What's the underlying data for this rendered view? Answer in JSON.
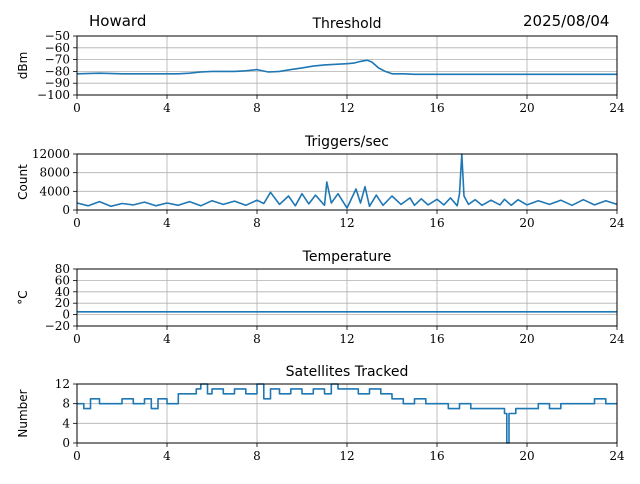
{
  "header": {
    "station": "Howard",
    "date": "2025/08/04"
  },
  "line_color": "#1f77b4",
  "grid_color": "#b0b0b0",
  "chart_data": [
    {
      "type": "line",
      "title": "Threshold",
      "ylabel": "dBm",
      "xlabel": "",
      "xlim": [
        0,
        24
      ],
      "ylim": [
        -100,
        -50
      ],
      "xticks": [
        0,
        4,
        8,
        12,
        16,
        20,
        24
      ],
      "yticks": [
        -100,
        -90,
        -80,
        -70,
        -60,
        -50
      ],
      "ytick_labels": [
        "−100",
        "−90",
        "−80",
        "−70",
        "−60",
        "−50"
      ],
      "grid": true,
      "series": [
        {
          "x": [
            0,
            1,
            2,
            3,
            4,
            4.5,
            5,
            5.5,
            6,
            7,
            7.5,
            8,
            8.5,
            9,
            9.5,
            10,
            10.5,
            11,
            11.5,
            12,
            12.3,
            12.6,
            12.9,
            13.1,
            13.4,
            13.7,
            14,
            14.5,
            15,
            16,
            17,
            18,
            19,
            20,
            21,
            22,
            23,
            24
          ],
          "y": [
            -82,
            -81.5,
            -82,
            -82,
            -82,
            -82,
            -81.5,
            -80.5,
            -80,
            -80,
            -79.5,
            -78.5,
            -80.5,
            -80,
            -78.5,
            -77,
            -75.5,
            -74.5,
            -74,
            -73.5,
            -73,
            -71.5,
            -70.5,
            -72,
            -77,
            -80,
            -82,
            -82,
            -82.5,
            -82.5,
            -82.5,
            -82.5,
            -82.5,
            -82.5,
            -82.5,
            -82.5,
            -82.5,
            -82.5
          ]
        }
      ]
    },
    {
      "type": "line",
      "title": "Triggers/sec",
      "ylabel": "Count",
      "xlabel": "",
      "xlim": [
        0,
        24
      ],
      "ylim": [
        0,
        12000
      ],
      "xticks": [
        0,
        4,
        8,
        12,
        16,
        20,
        24
      ],
      "yticks": [
        0,
        4000,
        8000,
        12000
      ],
      "ytick_labels": [
        "0",
        "4000",
        "8000",
        "12000"
      ],
      "grid": true,
      "series": [
        {
          "x": [
            0,
            0.5,
            1,
            1.5,
            2,
            2.5,
            3,
            3.5,
            4,
            4.5,
            5,
            5.5,
            6,
            6.5,
            7,
            7.5,
            8,
            8.3,
            8.6,
            9,
            9.4,
            9.7,
            10,
            10.3,
            10.6,
            11,
            11.1,
            11.3,
            11.6,
            12,
            12.4,
            12.6,
            12.8,
            13,
            13.3,
            13.6,
            14,
            14.4,
            14.8,
            15,
            15.3,
            15.6,
            16,
            16.3,
            16.6,
            16.9,
            17,
            17.1,
            17.2,
            17.4,
            17.7,
            18,
            18.4,
            18.8,
            19,
            19.3,
            19.6,
            20,
            20.5,
            21,
            21.5,
            22,
            22.5,
            23,
            23.5,
            24
          ],
          "y": [
            1500,
            900,
            1800,
            800,
            1400,
            1100,
            1700,
            900,
            1500,
            1000,
            1800,
            900,
            2000,
            1200,
            1900,
            1000,
            2100,
            1400,
            3800,
            1200,
            3000,
            900,
            3500,
            1300,
            3200,
            1000,
            6000,
            1500,
            3500,
            400,
            4500,
            1500,
            5000,
            800,
            3200,
            1000,
            3000,
            1200,
            2600,
            1000,
            2400,
            1100,
            2300,
            1100,
            2600,
            900,
            3500,
            12000,
            3000,
            1200,
            2200,
            1000,
            2100,
            1100,
            2300,
            1000,
            2200,
            1100,
            2000,
            1200,
            2100,
            1000,
            2200,
            1100,
            2000,
            1200
          ]
        }
      ]
    },
    {
      "type": "line",
      "title": "Temperature",
      "ylabel": "°C",
      "xlabel": "",
      "xlim": [
        0,
        24
      ],
      "ylim": [
        -20,
        80
      ],
      "xticks": [
        0,
        4,
        8,
        12,
        16,
        20,
        24
      ],
      "yticks": [
        -20,
        0,
        20,
        40,
        60,
        80
      ],
      "ytick_labels": [
        "−20",
        "0",
        "20",
        "40",
        "60",
        "80"
      ],
      "grid": true,
      "series": [
        {
          "x": [
            0,
            24
          ],
          "y": [
            5,
            5
          ]
        }
      ]
    },
    {
      "type": "line",
      "title": "Satellites Tracked",
      "ylabel": "Number",
      "xlabel": "",
      "xlim": [
        0,
        24
      ],
      "ylim": [
        0,
        12
      ],
      "xticks": [
        0,
        4,
        8,
        12,
        16,
        20,
        24
      ],
      "yticks": [
        0,
        4,
        8,
        12
      ],
      "ytick_labels": [
        "0",
        "4",
        "8",
        "12"
      ],
      "grid": true,
      "step": true,
      "series": [
        {
          "x": [
            0,
            0.3,
            0.6,
            1,
            1.5,
            2,
            2.5,
            3,
            3.3,
            3.6,
            4,
            4.5,
            5,
            5.3,
            5.5,
            5.8,
            6,
            6.5,
            7,
            7.5,
            8,
            8.3,
            8.6,
            9,
            9.5,
            10,
            10.5,
            11,
            11.3,
            11.6,
            12,
            12.5,
            13,
            13.5,
            14,
            14.5,
            15,
            15.5,
            16,
            16.5,
            17,
            17.5,
            18,
            18.5,
            19,
            19.1,
            19.2,
            19.5,
            20,
            20.5,
            21,
            21.5,
            22,
            22.5,
            23,
            23.5,
            24
          ],
          "y": [
            8,
            7,
            9,
            8,
            8,
            9,
            8,
            9,
            7,
            9,
            8,
            10,
            10,
            11,
            12,
            10,
            11,
            10,
            11,
            10,
            12,
            9,
            11,
            10,
            11,
            10,
            11,
            10,
            12,
            11,
            11,
            10,
            11,
            10,
            9,
            8,
            9,
            8,
            8,
            7,
            8,
            7,
            7,
            7,
            6,
            0,
            6,
            7,
            7,
            8,
            7,
            8,
            8,
            8,
            9,
            8,
            8
          ]
        }
      ]
    }
  ]
}
